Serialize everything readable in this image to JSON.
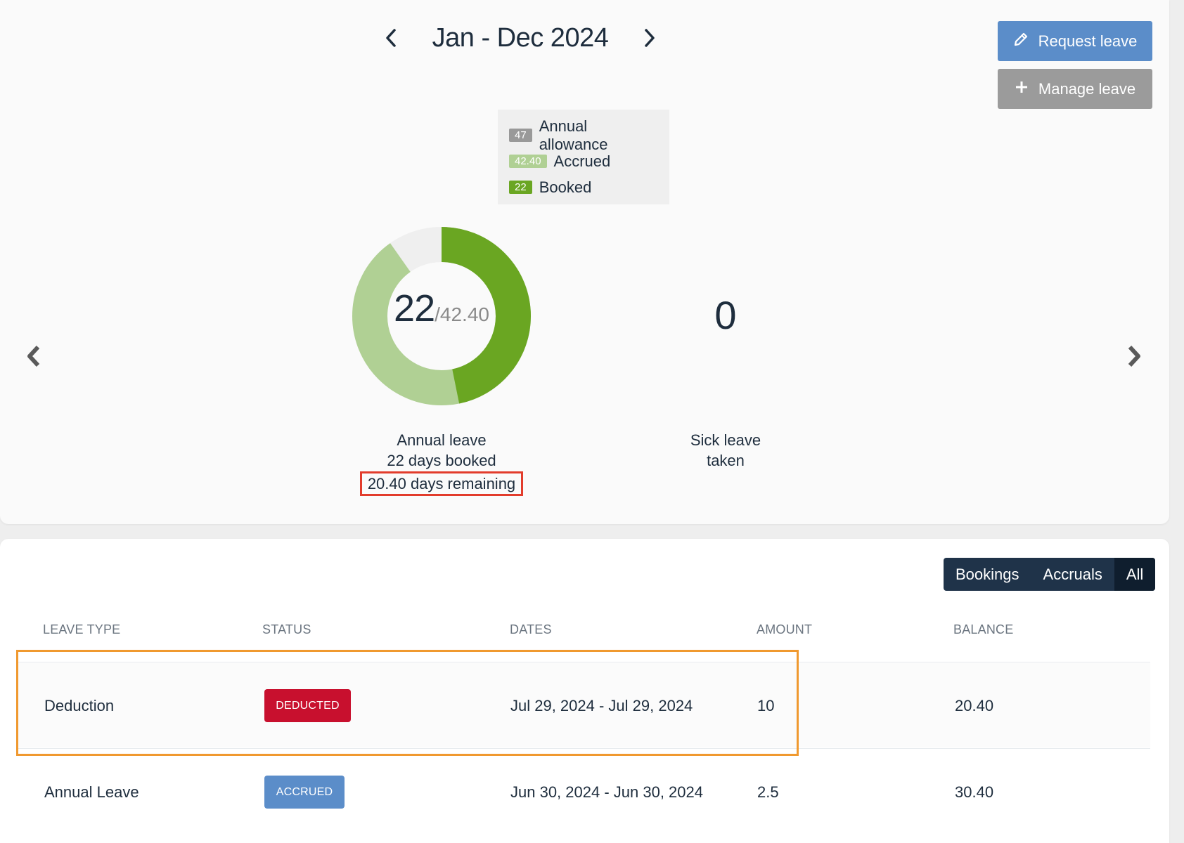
{
  "period": {
    "title": "Jan - Dec 2024"
  },
  "actions": {
    "request_label": "Request leave",
    "manage_label": "Manage leave"
  },
  "legend": [
    {
      "chip": "47",
      "label": "Annual allowance"
    },
    {
      "chip": "42.40",
      "label": "Accrued"
    },
    {
      "chip": "22",
      "label": "Booked"
    }
  ],
  "annual": {
    "booked_value": "22",
    "accrued_value": "/42.40",
    "title": "Annual leave",
    "booked_text": "22 days booked",
    "remaining_text": "20.40 days remaining",
    "chart": {
      "allowance": 47,
      "accrued": 42.4,
      "booked": 22
    }
  },
  "sick": {
    "value": "0",
    "line1": "Sick leave",
    "line2": "taken"
  },
  "filter": {
    "bookings": "Bookings",
    "accruals": "Accruals",
    "all": "All"
  },
  "table": {
    "headers": {
      "type": "LEAVE TYPE",
      "status": "STATUS",
      "dates": "DATES",
      "amount": "AMOUNT",
      "balance": "BALANCE"
    },
    "rows": [
      {
        "type": "Deduction",
        "status": "DEDUCTED",
        "dates": "Jul 29, 2024 - Jul 29, 2024",
        "amount": "10",
        "balance": "20.40"
      },
      {
        "type": "Annual Leave",
        "status": "ACCRUED",
        "dates": "Jun 30, 2024 - Jun 30, 2024",
        "amount": "2.5",
        "balance": "30.40"
      }
    ]
  },
  "colors": {
    "booked": "#6aa622",
    "accrued": "#b0d094",
    "track": "#efefef",
    "deducted": "#c8102e",
    "accrued_badge": "#5b8dc9"
  }
}
